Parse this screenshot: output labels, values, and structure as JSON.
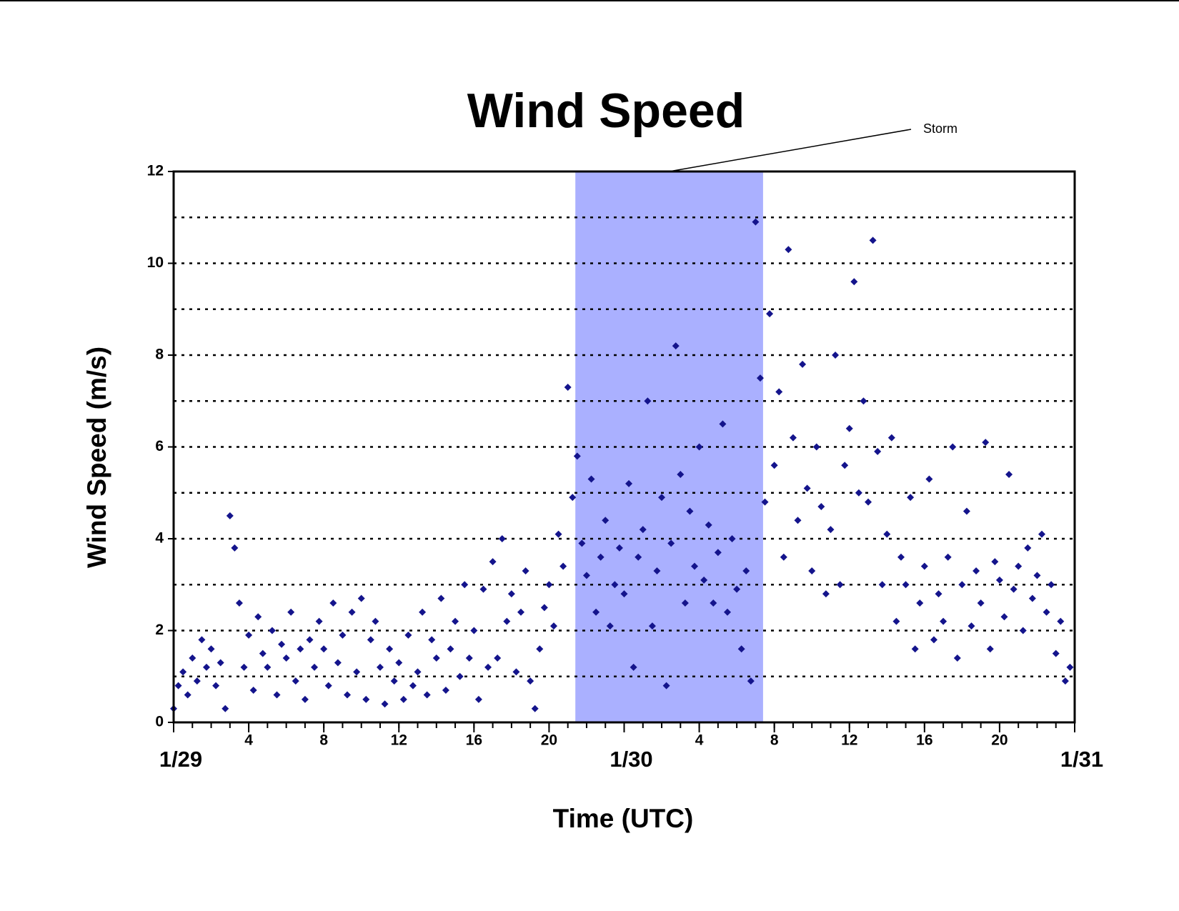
{
  "chart_data": {
    "type": "scatter",
    "title": "Wind Speed",
    "x_label": "Time (UTC)",
    "y_label": "Wind Speed (m/s)",
    "xlim": [
      0,
      48
    ],
    "ylim": [
      0,
      12
    ],
    "xticks": [
      {
        "value": 0,
        "label": "1/29"
      },
      4,
      8,
      12,
      16,
      20,
      {
        "value": 24,
        "label": "1/30"
      },
      {
        "value": 28,
        "label": "4"
      },
      {
        "value": 32,
        "label": "8"
      },
      {
        "value": 36,
        "label": "12"
      },
      {
        "value": 40,
        "label": "16"
      },
      {
        "value": 44,
        "label": "20"
      },
      {
        "value": 48,
        "label": "1/31"
      }
    ],
    "x_minor_ticks": [
      0,
      1,
      2,
      3,
      4,
      5,
      6,
      7,
      8,
      9,
      10,
      11,
      12,
      13,
      14,
      15,
      16,
      17,
      18,
      19,
      20,
      21,
      22,
      23,
      24,
      25,
      26,
      27,
      28,
      29,
      30,
      31,
      32,
      33,
      34,
      35,
      36,
      37,
      38,
      39,
      40,
      41,
      42,
      43,
      44,
      45,
      46,
      47,
      48
    ],
    "yticks": [
      0,
      2,
      4,
      6,
      8,
      10,
      12
    ],
    "y_grid": [
      1,
      2,
      3,
      4,
      5,
      6,
      7,
      8,
      9,
      10,
      11
    ],
    "span": {
      "label": "Storm",
      "start": 21.4,
      "end": 31.4,
      "color": "#aab0ff"
    },
    "series": [
      {
        "name": "Wind Speed",
        "color": "#14148c",
        "x": [
          0,
          0.25,
          0.5,
          0.75,
          1,
          1.25,
          1.5,
          1.75,
          2,
          2.25,
          2.5,
          2.75,
          3,
          3.25,
          3.5,
          3.75,
          4,
          4.25,
          4.5,
          4.75,
          5,
          5.25,
          5.5,
          5.75,
          6,
          6.25,
          6.5,
          6.75,
          7,
          7.25,
          7.5,
          7.75,
          8,
          8.25,
          8.5,
          8.75,
          9,
          9.25,
          9.5,
          9.75,
          10,
          10.25,
          10.5,
          10.75,
          11,
          11.25,
          11.5,
          11.75,
          12,
          12.25,
          12.5,
          12.75,
          13,
          13.25,
          13.5,
          13.75,
          14,
          14.25,
          14.5,
          14.75,
          15,
          15.25,
          15.5,
          15.75,
          16,
          16.25,
          16.5,
          16.75,
          17,
          17.25,
          17.5,
          17.75,
          18,
          18.25,
          18.5,
          18.75,
          19,
          19.25,
          19.5,
          19.75,
          20,
          20.25,
          20.5,
          20.75,
          21,
          21.25,
          21.5,
          21.75,
          22,
          22.25,
          22.5,
          22.75,
          23,
          23.25,
          23.5,
          23.75,
          24,
          24.25,
          24.5,
          24.75,
          25,
          25.25,
          25.5,
          25.75,
          26,
          26.25,
          26.5,
          26.75,
          27,
          27.25,
          27.5,
          27.75,
          28,
          28.25,
          28.5,
          28.75,
          29,
          29.25,
          29.5,
          29.75,
          30,
          30.25,
          30.5,
          30.75,
          31,
          31.25,
          31.5,
          31.75,
          32,
          32.25,
          32.5,
          32.75,
          33,
          33.25,
          33.5,
          33.75,
          34,
          34.25,
          34.5,
          34.75,
          35,
          35.25,
          35.5,
          35.75,
          36,
          36.25,
          36.5,
          36.75,
          37,
          37.25,
          37.5,
          37.75,
          38,
          38.25,
          38.5,
          38.75,
          39,
          39.25,
          39.5,
          39.75,
          40,
          40.25,
          40.5,
          40.75,
          41,
          41.25,
          41.5,
          41.75,
          42,
          42.25,
          42.5,
          42.75,
          43,
          43.25,
          43.5,
          43.75,
          44,
          44.25,
          44.5,
          44.75,
          45,
          45.25,
          45.5,
          45.75,
          46,
          46.25,
          46.5,
          46.75,
          47,
          47.25,
          47.5,
          47.75
        ],
        "values": [
          0.3,
          0.8,
          1.1,
          0.6,
          1.4,
          0.9,
          1.8,
          1.2,
          1.6,
          0.8,
          1.3,
          0.3,
          4.5,
          3.8,
          2.6,
          1.2,
          1.9,
          0.7,
          2.3,
          1.5,
          1.2,
          2.0,
          0.6,
          1.7,
          1.4,
          2.4,
          0.9,
          1.6,
          0.5,
          1.8,
          1.2,
          2.2,
          1.6,
          0.8,
          2.6,
          1.3,
          1.9,
          0.6,
          2.4,
          1.1,
          2.7,
          0.5,
          1.8,
          2.2,
          1.2,
          0.4,
          1.6,
          0.9,
          1.3,
          0.5,
          1.9,
          0.8,
          1.1,
          2.4,
          0.6,
          1.8,
          1.4,
          2.7,
          0.7,
          1.6,
          2.2,
          1.0,
          3.0,
          1.4,
          2.0,
          0.5,
          2.9,
          1.2,
          3.5,
          1.4,
          4.0,
          2.2,
          2.8,
          1.1,
          2.4,
          3.3,
          0.9,
          0.3,
          1.6,
          2.5,
          3.0,
          2.1,
          4.1,
          3.4,
          7.3,
          4.9,
          5.8,
          3.9,
          3.2,
          5.3,
          2.4,
          3.6,
          4.4,
          2.1,
          3.0,
          3.8,
          2.8,
          5.2,
          1.2,
          3.6,
          4.2,
          7.0,
          2.1,
          3.3,
          4.9,
          0.8,
          3.9,
          8.2,
          5.4,
          2.6,
          4.6,
          3.4,
          6.0,
          3.1,
          4.3,
          2.6,
          3.7,
          6.5,
          2.4,
          4.0,
          2.9,
          1.6,
          3.3,
          0.9,
          10.9,
          7.5,
          4.8,
          8.9,
          5.6,
          7.2,
          3.6,
          10.3,
          6.2,
          4.4,
          7.8,
          5.1,
          3.3,
          6.0,
          4.7,
          2.8,
          4.2,
          8.0,
          3.0,
          5.6,
          6.4,
          9.6,
          5.0,
          7.0,
          4.8,
          10.5,
          5.9,
          3.0,
          4.1,
          6.2,
          2.2,
          3.6,
          3.0,
          4.9,
          1.6,
          2.6,
          3.4,
          5.3,
          1.8,
          2.8,
          2.2,
          3.6,
          6.0,
          1.4,
          3.0,
          4.6,
          2.1,
          3.3,
          2.6,
          6.1,
          1.6,
          3.5,
          3.1,
          2.3,
          5.4,
          2.9,
          3.4,
          2.0,
          3.8,
          2.7,
          3.2,
          4.1,
          2.4,
          3.0,
          1.5,
          2.2,
          0.9,
          1.2
        ]
      }
    ]
  }
}
